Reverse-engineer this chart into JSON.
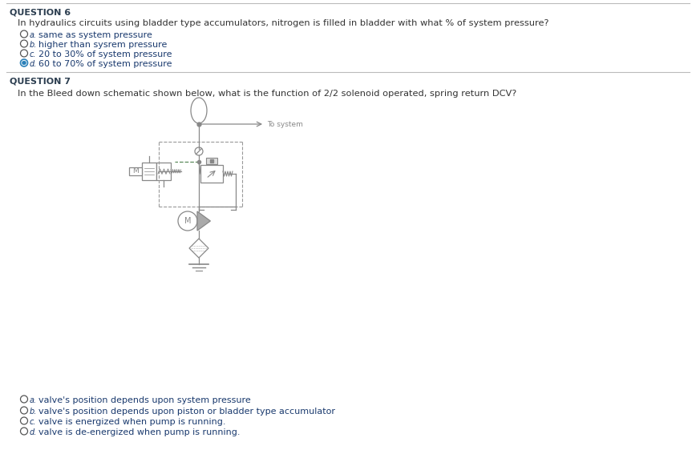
{
  "bg_color": "#ffffff",
  "q6_label": "QUESTION 6",
  "q6_question": "In hydraulics circuits using bladder type accumulators, nitrogen is filled in bladder with what % of system pressure?",
  "q6_options": [
    {
      "label": "a.",
      "text": "same as system pressure",
      "selected": false
    },
    {
      "label": "b.",
      "text": "higher than sysrem pressure",
      "selected": false
    },
    {
      "label": "c.",
      "text": "20 to 30% of system pressure",
      "selected": false
    },
    {
      "label": "d.",
      "text": "60 to 70% of system pressure",
      "selected": true
    }
  ],
  "q7_label": "QUESTION 7",
  "q7_question": "In the Bleed down schematic shown below, what is the function of 2/2 solenoid operated, spring return DCV?",
  "q7_options": [
    {
      "label": "a.",
      "text": "valve's position depends upon system pressure",
      "selected": false
    },
    {
      "label": "b.",
      "text": "valve's position depends upon piston or bladder type accumulator",
      "selected": false
    },
    {
      "label": "c.",
      "text": "valve is energized when pump is running.",
      "selected": false
    },
    {
      "label": "d.",
      "text": "valve is de-energized when pump is running.",
      "selected": false
    }
  ],
  "text_color_dark": "#333333",
  "text_color_blue": "#1a3a6e",
  "text_color_question": "#c0392b",
  "header_color": "#2c3e50",
  "selected_fill": "#2980b9",
  "unselected_fill": "#ffffff",
  "circle_edge": "#555555",
  "selected_edge": "#2980b9",
  "diagram_color": "#888888",
  "separator_color": "#bbbbbb",
  "dashed_green": "#5a8a5a"
}
